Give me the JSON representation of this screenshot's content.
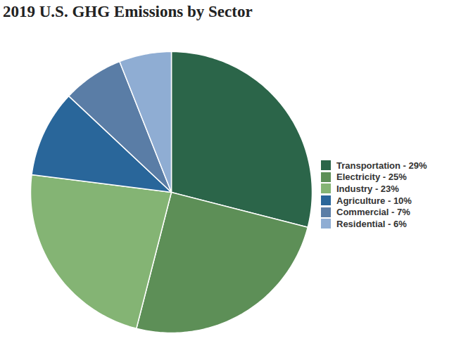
{
  "chart_data": {
    "type": "pie",
    "title": "2019 U.S. GHG Emissions by Sector",
    "categories": [
      "Transportation - 29%",
      "Electricity - 25%",
      "Industry - 23%",
      "Agriculture - 10%",
      "Commercial - 7%",
      "Residential - 6%"
    ],
    "values": [
      29,
      25,
      23,
      10,
      7,
      6
    ],
    "colors": [
      "#2b6549",
      "#5d8f57",
      "#84b474",
      "#29669a",
      "#5a7da6",
      "#8fadd3"
    ],
    "legend": "right",
    "tick_labels": false
  }
}
